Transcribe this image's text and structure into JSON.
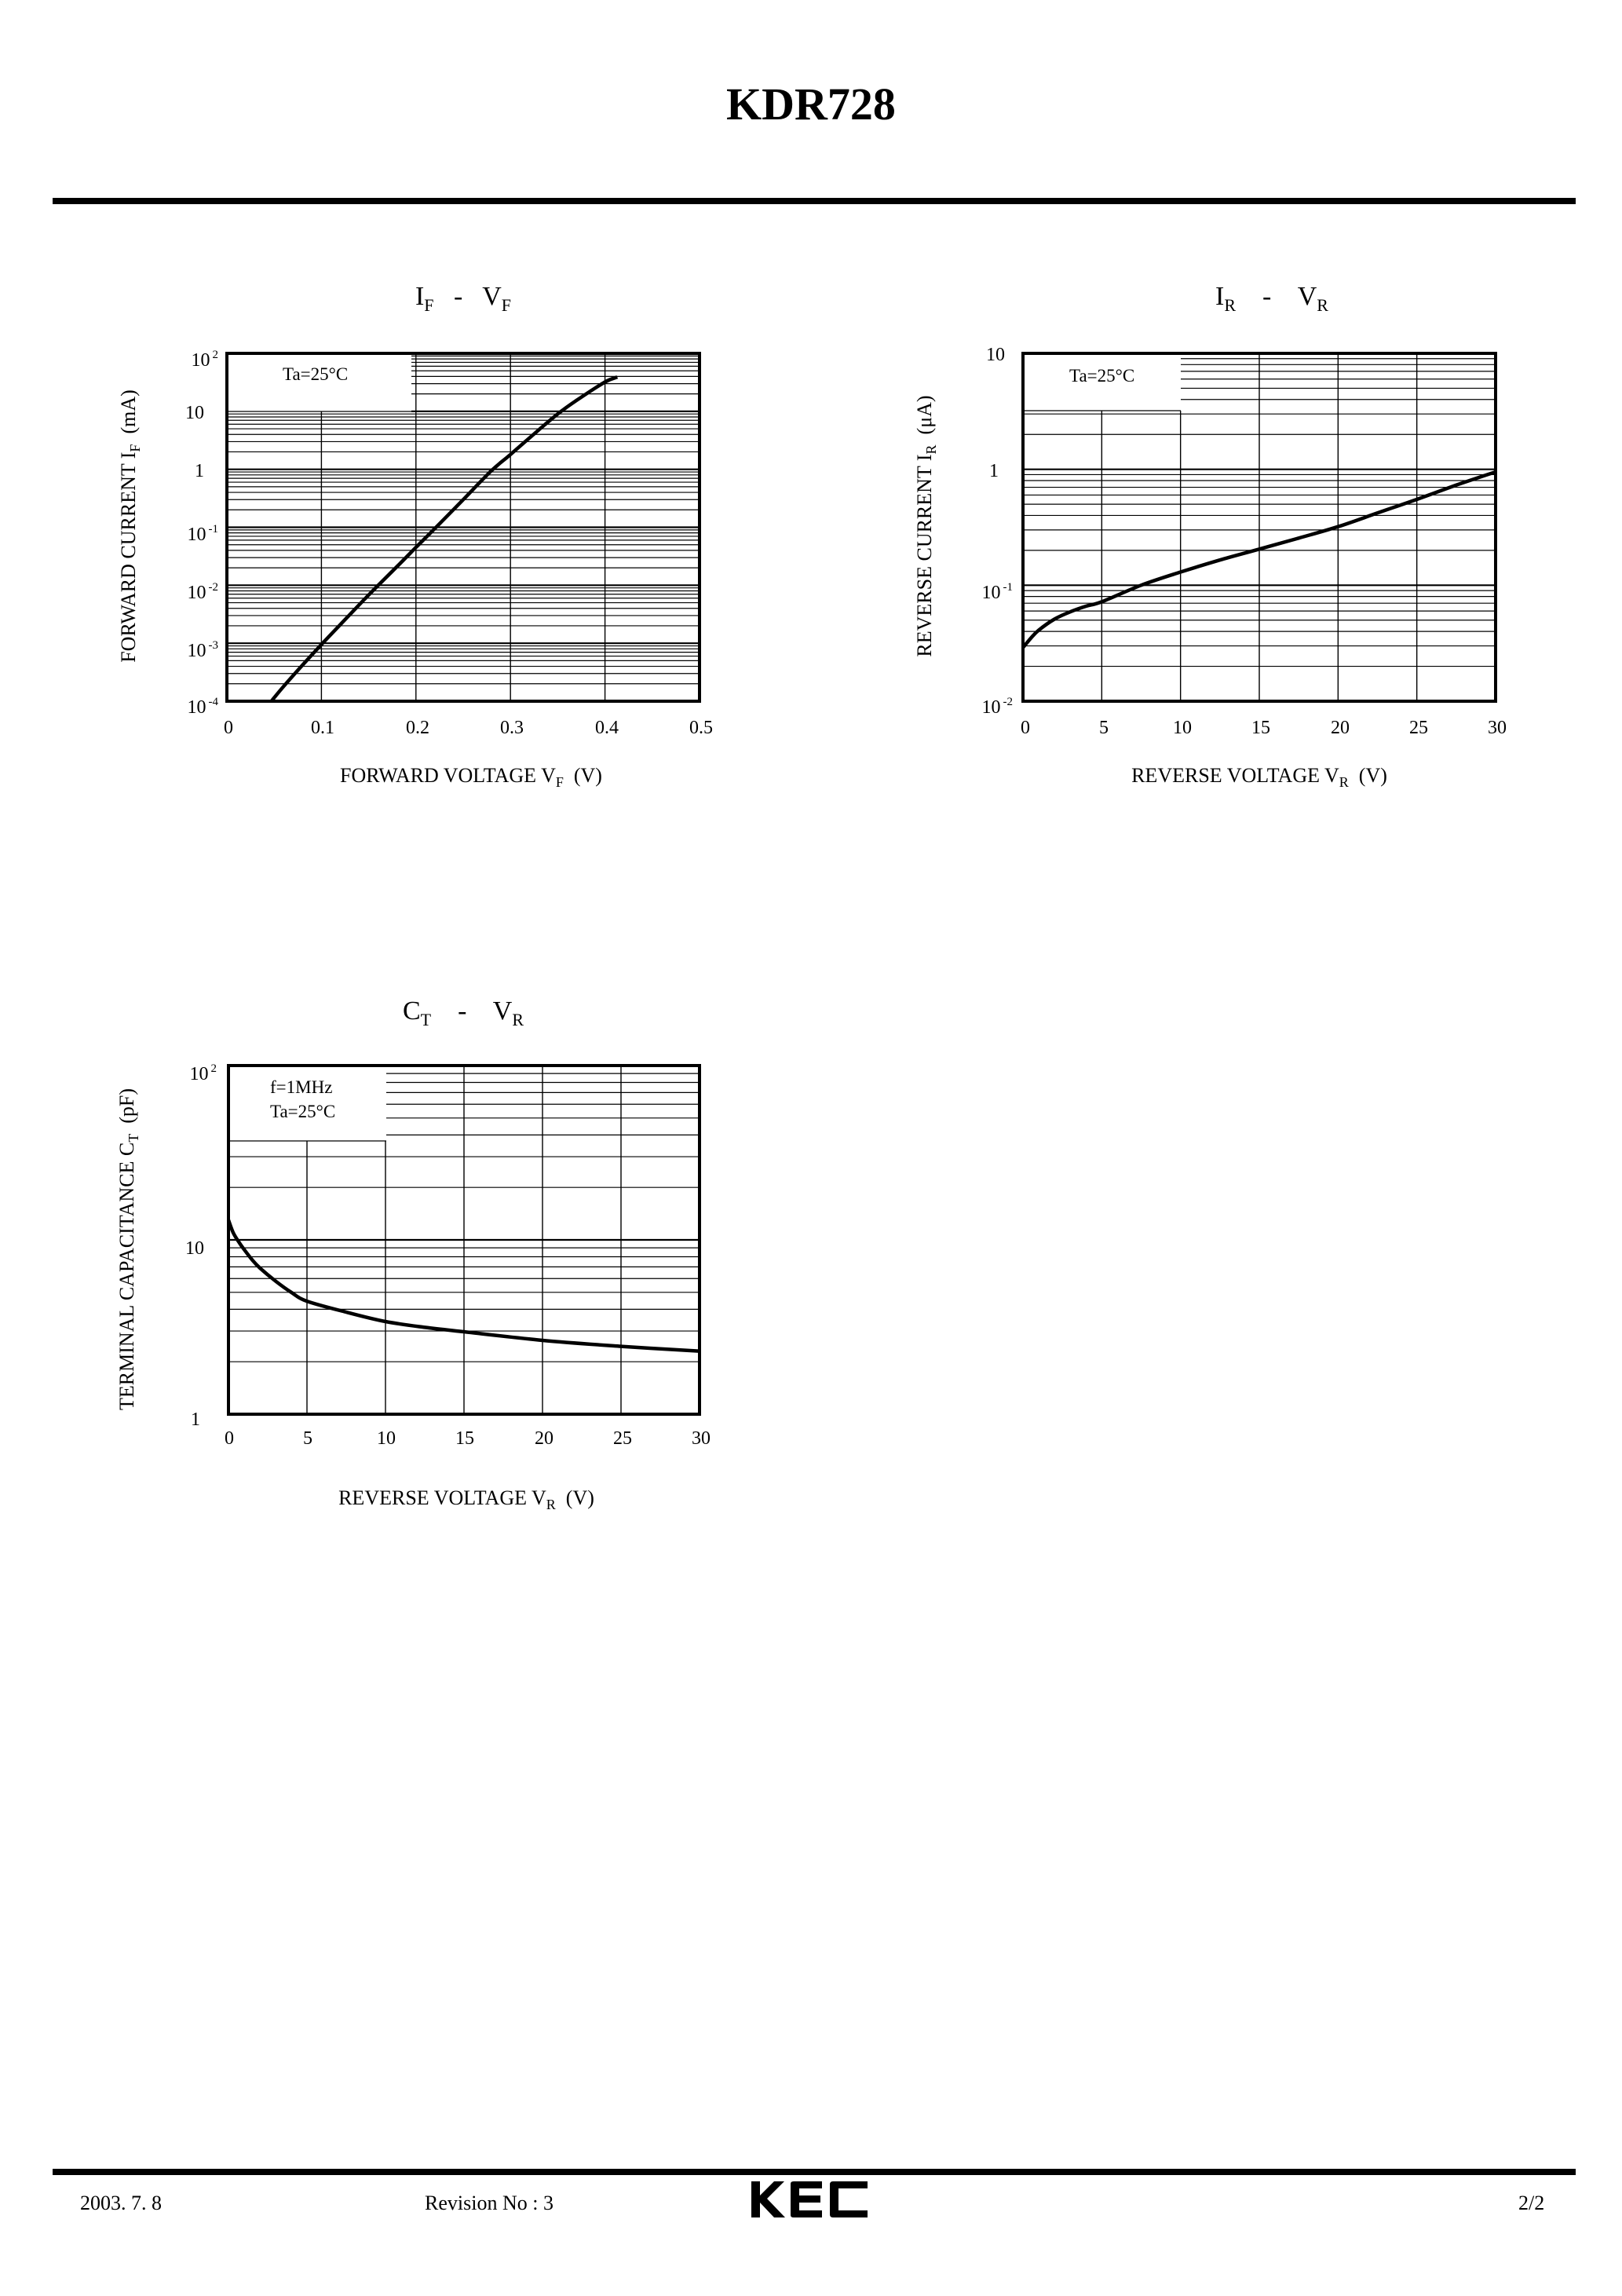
{
  "header": {
    "title": "KDR728"
  },
  "footer": {
    "date": "2003. 7. 8",
    "revision": "Revision No : 3",
    "logo": "KEC",
    "page": "2/2"
  },
  "charts": [
    {
      "id": "if-vf",
      "title": {
        "main1": "I",
        "sub1": "F",
        "dash": "-",
        "main2": "V",
        "sub2": "F"
      },
      "annotation": [
        "Ta=25°C"
      ],
      "x_title": {
        "text": "FORWARD VOLTAGE V",
        "sub": "F",
        "unit": "(V)"
      },
      "y_title": {
        "text": "FORWARD CURRENT I",
        "sub": "F",
        "unit": "(mA)"
      },
      "x_ticks": [
        "0",
        "0.1",
        "0.2",
        "0.3",
        "0.4",
        "0.5"
      ],
      "y_ticks": [
        {
          "base": "10",
          "exp": "2"
        },
        {
          "base": "10",
          "exp": ""
        },
        {
          "base": "1",
          "exp": ""
        },
        {
          "base": "10",
          "exp": "-1"
        },
        {
          "base": "10",
          "exp": "-2"
        },
        {
          "base": "10",
          "exp": "-3"
        },
        {
          "base": "10",
          "exp": "-4"
        }
      ]
    },
    {
      "id": "ir-vr",
      "title": {
        "main1": "I",
        "sub1": "R",
        "dash": "-",
        "main2": "V",
        "sub2": "R"
      },
      "annotation": [
        "Ta=25°C"
      ],
      "x_title": {
        "text": "REVERSE VOLTAGE V",
        "sub": "R",
        "unit": "(V)"
      },
      "y_title": {
        "text": "REVERSE CURRENT I",
        "sub": "R",
        "unit": "(μA)"
      },
      "x_ticks": [
        "0",
        "5",
        "10",
        "15",
        "20",
        "25",
        "30"
      ],
      "y_ticks": [
        {
          "base": "10",
          "exp": ""
        },
        {
          "base": "1",
          "exp": ""
        },
        {
          "base": "10",
          "exp": "-1"
        },
        {
          "base": "10",
          "exp": "-2"
        }
      ]
    },
    {
      "id": "ct-vr",
      "title": {
        "main1": "C",
        "sub1": "T",
        "dash": "-",
        "main2": "V",
        "sub2": "R"
      },
      "annotation": [
        "f=1MHz",
        "Ta=25°C"
      ],
      "x_title": {
        "text": "REVERSE VOLTAGE V",
        "sub": "R",
        "unit": "(V)"
      },
      "y_title": {
        "text": "TERMINAL CAPACITANCE C",
        "sub": "T",
        "unit": "(pF)"
      },
      "x_ticks": [
        "0",
        "5",
        "10",
        "15",
        "20",
        "25",
        "30"
      ],
      "y_ticks": [
        {
          "base": "10",
          "exp": "2"
        },
        {
          "base": "10",
          "exp": ""
        },
        {
          "base": "1",
          "exp": ""
        }
      ]
    }
  ],
  "chart_data": [
    {
      "type": "line",
      "title": "IF - VF",
      "xlabel": "FORWARD VOLTAGE VF (V)",
      "ylabel": "FORWARD CURRENT IF (mA)",
      "xlim": [
        0,
        0.5
      ],
      "ylim": [
        0.0001,
        100
      ],
      "yscale": "log",
      "grid": true,
      "annotations": [
        "Ta=25°C"
      ],
      "x_tick_labels": [
        "0",
        "0.1",
        "0.2",
        "0.3",
        "0.4",
        "0.5"
      ],
      "y_tick_labels": [
        "10^2",
        "10",
        "1",
        "10^-1",
        "10^-2",
        "10^-3",
        "10^-4"
      ],
      "series": [
        {
          "name": "Ta=25°C",
          "x": [
            0.047,
            0.06,
            0.08,
            0.1,
            0.12,
            0.15,
            0.18,
            0.2,
            0.22,
            0.25,
            0.28,
            0.3,
            0.33,
            0.35,
            0.37,
            0.4,
            0.413
          ],
          "y": [
            0.0001,
            0.00018,
            0.00042,
            0.00095,
            0.0021,
            0.0068,
            0.021,
            0.045,
            0.095,
            0.3,
            0.95,
            1.8,
            4.8,
            9.0,
            15.5,
            32,
            39
          ]
        }
      ]
    },
    {
      "type": "line",
      "title": "IR - VR",
      "xlabel": "REVERSE VOLTAGE VR (V)",
      "ylabel": "REVERSE CURRENT IR (μA)",
      "xlim": [
        0,
        30
      ],
      "ylim": [
        0.01,
        10
      ],
      "yscale": "log",
      "grid": true,
      "annotations": [
        "Ta=25°C"
      ],
      "x_tick_labels": [
        "0",
        "5",
        "10",
        "15",
        "20",
        "25",
        "30"
      ],
      "y_tick_labels": [
        "10",
        "1",
        "10^-1",
        "10^-2"
      ],
      "series": [
        {
          "name": "Ta=25°C",
          "x": [
            0,
            0.5,
            1,
            2,
            3,
            4,
            5,
            7.5,
            10,
            12.5,
            15,
            17.5,
            20,
            22.5,
            25,
            27.5,
            30
          ],
          "y": [
            0.029,
            0.035,
            0.041,
            0.051,
            0.059,
            0.066,
            0.072,
            0.1,
            0.13,
            0.165,
            0.205,
            0.255,
            0.32,
            0.42,
            0.55,
            0.73,
            0.95
          ]
        }
      ]
    },
    {
      "type": "line",
      "title": "CT - VR",
      "xlabel": "REVERSE VOLTAGE VR (V)",
      "ylabel": "TERMINAL CAPACITANCE CT (pF)",
      "xlim": [
        0,
        30
      ],
      "ylim": [
        1,
        100
      ],
      "yscale": "log",
      "grid": true,
      "annotations": [
        "f=1MHz",
        "Ta=25°C"
      ],
      "x_tick_labels": [
        "0",
        "5",
        "10",
        "15",
        "20",
        "25",
        "30"
      ],
      "y_tick_labels": [
        "10^2",
        "10",
        "1"
      ],
      "series": [
        {
          "name": "f=1MHz, Ta=25°C",
          "x": [
            0,
            0.3,
            0.7,
            1,
            1.5,
            2,
            3,
            4,
            5,
            7.5,
            10,
            12.5,
            15,
            20,
            25,
            30
          ],
          "y": [
            13,
            11,
            9.6,
            8.8,
            7.7,
            6.9,
            5.8,
            5.0,
            4.45,
            3.85,
            3.4,
            3.15,
            2.97,
            2.65,
            2.45,
            2.3
          ]
        }
      ]
    }
  ]
}
